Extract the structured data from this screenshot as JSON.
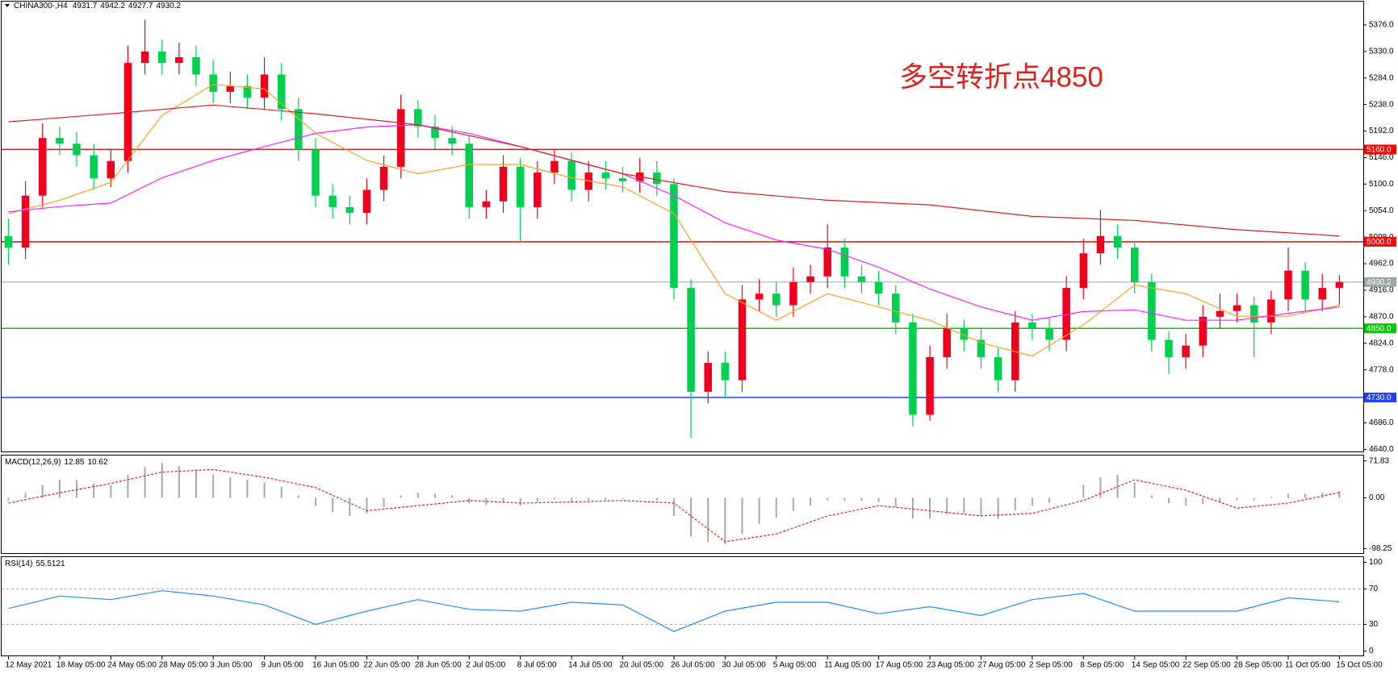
{
  "chart_data": {
    "type": "candlestick",
    "title": "CHINA300-,H4",
    "header_values": [
      4931.7,
      4942.2,
      4927.7,
      4930.2
    ],
    "annotation": "多空转折点4850",
    "up_color": "#f0001c",
    "down_color": "#00d050",
    "xlim": [
      -0.4,
      79.4
    ],
    "xticks": [
      {
        "value": 0,
        "label": "12 May 2021"
      },
      {
        "value": 3,
        "label": "18 May 05:00"
      },
      {
        "value": 6,
        "label": "24 May 05:00"
      },
      {
        "value": 9,
        "label": "28 May 05:00"
      },
      {
        "value": 12,
        "label": "3 Jun 05:00"
      },
      {
        "value": 15,
        "label": "9 Jun 05:00"
      },
      {
        "value": 18,
        "label": "16 Jun 05:00"
      },
      {
        "value": 21,
        "label": "22 Jun 05:00"
      },
      {
        "value": 24,
        "label": "28 Jun 05:00"
      },
      {
        "value": 27,
        "label": "2 Jul 05:00"
      },
      {
        "value": 30,
        "label": "8 Jul 05:00"
      },
      {
        "value": 33,
        "label": "14 Jul 05:00"
      },
      {
        "value": 36,
        "label": "20 Jul 05:00"
      },
      {
        "value": 39,
        "label": "26 Jul 05:00"
      },
      {
        "value": 42,
        "label": "30 Jul 05:00"
      },
      {
        "value": 45,
        "label": "5 Aug 05:00"
      },
      {
        "value": 48,
        "label": "11 Aug 05:00"
      },
      {
        "value": 51,
        "label": "17 Aug 05:00"
      },
      {
        "value": 54,
        "label": "23 Aug 05:00"
      },
      {
        "value": 57,
        "label": "27 Aug 05:00"
      },
      {
        "value": 60,
        "label": "2 Sep 05:00"
      },
      {
        "value": 63,
        "label": "8 Sep 05:00"
      },
      {
        "value": 66,
        "label": "14 Sep 05:00"
      },
      {
        "value": 69,
        "label": "22 Sep 05:00"
      },
      {
        "value": 72,
        "label": "28 Sep 05:00"
      },
      {
        "value": 75,
        "label": "11 Oct 05:00"
      },
      {
        "value": 78,
        "label": "15 Oct 05:00"
      }
    ],
    "ylim": [
      4635,
      5401
    ],
    "yticks": [
      {
        "value": 4640,
        "label": "4640.0"
      },
      {
        "value": 4686,
        "label": "4686.0"
      },
      {
        "value": 4732,
        "label": "4732.0"
      },
      {
        "value": 4778,
        "label": "4778.0"
      },
      {
        "value": 4824,
        "label": "4824.0"
      },
      {
        "value": 4870,
        "label": "4870.0"
      },
      {
        "value": 4916,
        "label": "4916.0"
      },
      {
        "value": 4962,
        "label": "4962.0"
      },
      {
        "value": 5008,
        "label": "5008.0"
      },
      {
        "value": 5054,
        "label": "5054.0"
      },
      {
        "value": 5100,
        "label": "5100.0"
      },
      {
        "value": 5146,
        "label": "5146.0"
      },
      {
        "value": 5192,
        "label": "5192.0"
      },
      {
        "value": 5238,
        "label": "5238.0"
      },
      {
        "value": 5284,
        "label": "5284.0"
      },
      {
        "value": 5330,
        "label": "5330.0"
      },
      {
        "value": 5376,
        "label": "5376.0"
      }
    ],
    "levels": [
      {
        "value": 5160,
        "label": "5160.0",
        "color": "#ff0000"
      },
      {
        "value": 5000,
        "label": "5000.0",
        "color": "#ff0000"
      },
      {
        "value": 4930.2,
        "label": "4930.2",
        "color": "#9aa8a8"
      },
      {
        "value": 4850,
        "label": "4850.0",
        "color": "#00c800"
      },
      {
        "value": 4730,
        "label": "4730.0",
        "color": "#2040ff"
      }
    ],
    "open": [
      5010,
      4990,
      5080,
      5180,
      5170,
      5150,
      5110,
      5140,
      5310,
      5330,
      5310,
      5320,
      5290,
      5260,
      5270,
      5250,
      5290,
      5230,
      5160,
      5080,
      5060,
      5050,
      5090,
      5130,
      5230,
      5200,
      5180,
      5170,
      5060,
      5070,
      5130,
      5060,
      5120,
      5140,
      5090,
      5120,
      5110,
      5105,
      5120,
      5100,
      4920,
      4740,
      4790,
      4760,
      4900,
      4910,
      4890,
      4930,
      4940,
      4990,
      4940,
      4930,
      4910,
      4860,
      4700,
      4800,
      4850,
      4830,
      4800,
      4760,
      4860,
      4850,
      4830,
      4920,
      4980,
      5010,
      4990,
      4930,
      4830,
      4800,
      4820,
      4870,
      4880,
      4890,
      4860,
      4900,
      4950,
      4900,
      4920
    ],
    "high": [
      5040,
      5105,
      5205,
      5200,
      5190,
      5170,
      5160,
      5340,
      5385,
      5350,
      5345,
      5340,
      5315,
      5295,
      5290,
      5320,
      5310,
      5250,
      5180,
      5100,
      5080,
      5110,
      5150,
      5255,
      5245,
      5220,
      5200,
      5185,
      5090,
      5150,
      5145,
      5140,
      5160,
      5155,
      5140,
      5140,
      5130,
      5145,
      5140,
      5110,
      4935,
      4810,
      4810,
      4925,
      4935,
      4930,
      4955,
      4960,
      5030,
      5005,
      4960,
      4950,
      4925,
      4875,
      4820,
      4875,
      4865,
      4850,
      4815,
      4880,
      4875,
      4870,
      4940,
      5005,
      5055,
      5030,
      5000,
      4945,
      4845,
      4840,
      4890,
      4910,
      4910,
      4905,
      4915,
      4990,
      4965,
      4945,
      4942.2
    ],
    "low": [
      4960,
      4970,
      5060,
      5150,
      5130,
      5090,
      5095,
      5120,
      5290,
      5290,
      5290,
      5270,
      5240,
      5240,
      5230,
      5230,
      5210,
      5140,
      5060,
      5040,
      5030,
      5030,
      5070,
      5110,
      5180,
      5160,
      5150,
      5040,
      5040,
      5050,
      5000,
      5040,
      5100,
      5070,
      5070,
      5090,
      5085,
      5085,
      5080,
      4900,
      4660,
      4720,
      4730,
      4740,
      4880,
      4870,
      4870,
      4910,
      4920,
      4920,
      4910,
      4890,
      4840,
      4680,
      4690,
      4780,
      4810,
      4780,
      4740,
      4740,
      4830,
      4810,
      4810,
      4900,
      4960,
      4970,
      4910,
      4810,
      4770,
      4780,
      4800,
      4850,
      4860,
      4800,
      4840,
      4880,
      4880,
      4880,
      4890
    ],
    "close": [
      4990,
      5080,
      5180,
      5170,
      5150,
      5110,
      5140,
      5310,
      5330,
      5310,
      5320,
      5290,
      5260,
      5270,
      5250,
      5290,
      5230,
      5160,
      5080,
      5060,
      5050,
      5090,
      5130,
      5230,
      5200,
      5180,
      5170,
      5060,
      5070,
      5130,
      5060,
      5120,
      5140,
      5090,
      5120,
      5110,
      5105,
      5120,
      5100,
      4920,
      4740,
      4790,
      4760,
      4900,
      4910,
      4890,
      4930,
      4940,
      4990,
      4940,
      4930,
      4910,
      4860,
      4700,
      4800,
      4850,
      4830,
      4800,
      4760,
      4860,
      4850,
      4830,
      4920,
      4980,
      5010,
      4990,
      4930,
      4830,
      4800,
      4820,
      4870,
      4880,
      4890,
      4860,
      4900,
      4950,
      4900,
      4920,
      4930.2
    ],
    "overlays": [
      {
        "color": "#ffa020",
        "x": [
          0,
          3,
          6,
          9,
          12,
          15,
          18,
          21,
          24,
          27,
          30,
          33,
          36,
          39,
          42,
          45,
          48,
          51,
          54,
          57,
          60,
          63,
          66,
          69,
          72,
          75,
          78
        ],
        "values": [
          5049,
          5072,
          5103,
          5219,
          5273,
          5265,
          5188,
          5141,
          5118,
          5134,
          5134,
          5111,
          5095,
          5049,
          4910,
          4864,
          4910,
          4887,
          4864,
          4825,
          4802,
          4856,
          4925,
          4910,
          4871,
          4871,
          4890
        ]
      },
      {
        "color": "#ff20ff",
        "x": [
          0,
          3,
          6,
          9,
          12,
          15,
          18,
          21,
          24,
          27,
          30,
          33,
          36,
          39,
          42,
          45,
          48,
          51,
          54,
          57,
          60,
          63,
          66,
          69,
          72,
          75,
          78
        ],
        "values": [
          5052,
          5061,
          5067,
          5111,
          5141,
          5165,
          5188,
          5199,
          5203,
          5188,
          5165,
          5141,
          5118,
          5080,
          5033,
          5003,
          4987,
          4956,
          4918,
          4887,
          4864,
          4879,
          4882,
          4864,
          4864,
          4876,
          4887
        ]
      },
      {
        "color": "#e02020",
        "x": [
          0,
          6,
          12,
          18,
          24,
          30,
          36,
          42,
          48,
          54,
          60,
          66,
          72,
          78
        ],
        "values": [
          5208,
          5222,
          5237,
          5222,
          5203,
          5165,
          5118,
          5087,
          5072,
          5064,
          5044,
          5037,
          5021,
          5010
        ]
      }
    ],
    "indicators": [
      {
        "type": "macd",
        "title": "MACD(12,26,9)",
        "readout": [
          12.85,
          10.62
        ],
        "ylim": [
          -107,
          80.6
        ],
        "yticks": [
          71.83,
          {
            "value": 0,
            "label": "0.00"
          },
          -98.25
        ],
        "histogram": {
          "color": "#a8a8a8",
          "values": [
            -5,
            10,
            25,
            35,
            35,
            28,
            25,
            45,
            60,
            68,
            62,
            55,
            45,
            40,
            35,
            30,
            22,
            5,
            -15,
            -28,
            -35,
            -30,
            -18,
            5,
            10,
            8,
            5,
            -10,
            -14,
            -10,
            -15,
            -8,
            -3,
            -8,
            -5,
            -4,
            -2,
            -1,
            -5,
            -35,
            -75,
            -85,
            -90,
            -70,
            -50,
            -38,
            -25,
            -15,
            -5,
            -5,
            -6,
            -8,
            -18,
            -40,
            -40,
            -32,
            -30,
            -35,
            -40,
            -25,
            -15,
            -10,
            0,
            25,
            40,
            45,
            30,
            5,
            -10,
            -15,
            -12,
            -8,
            -5,
            -5,
            2,
            8,
            8,
            10,
            12.85
          ]
        },
        "signal": {
          "color": "#e02020",
          "x": [
            0,
            3,
            6,
            9,
            12,
            15,
            18,
            21,
            24,
            27,
            30,
            33,
            36,
            39,
            42,
            45,
            48,
            51,
            54,
            57,
            60,
            63,
            66,
            69,
            72,
            75,
            78
          ],
          "values": [
            -10,
            10,
            28,
            50,
            55,
            40,
            20,
            -25,
            -15,
            -5,
            -10,
            -8,
            -5,
            -10,
            -85,
            -70,
            -35,
            -15,
            -25,
            -35,
            -30,
            -5,
            35,
            15,
            -20,
            -10,
            10.62
          ]
        }
      },
      {
        "type": "rsi",
        "title": "RSI(14)",
        "readout": [
          55.5121
        ],
        "ylim": [
          -5,
          105
        ],
        "yticks": [
          100,
          70,
          30,
          0
        ],
        "dotted_levels": [
          70,
          30
        ],
        "line": {
          "color": "#1e90ff",
          "x": [
            0,
            3,
            6,
            9,
            12,
            15,
            18,
            21,
            24,
            27,
            30,
            33,
            36,
            39,
            42,
            45,
            48,
            51,
            54,
            57,
            60,
            63,
            66,
            69,
            72,
            75,
            78
          ],
          "values": [
            48,
            62,
            58,
            68,
            62,
            52,
            30,
            45,
            58,
            47,
            45,
            55,
            52,
            22,
            45,
            55,
            55,
            42,
            50,
            40,
            58,
            65,
            45,
            45,
            45,
            60,
            55.5121
          ]
        }
      }
    ]
  }
}
